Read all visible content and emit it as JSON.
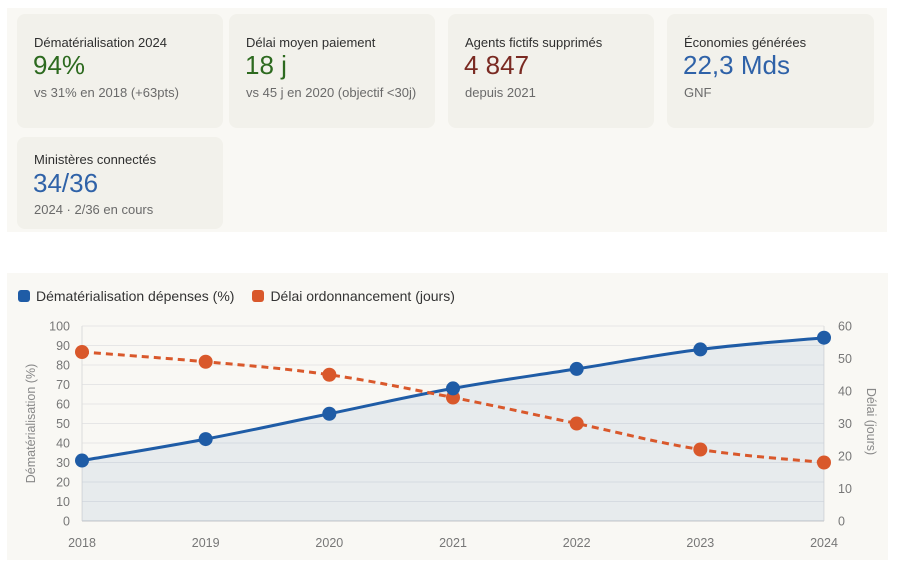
{
  "kpis": [
    {
      "label": "Dématérialisation 2024",
      "value": "94%",
      "sub": "vs 31% en 2018 (+63pts)",
      "tone": "green"
    },
    {
      "label": "Délai moyen paiement",
      "value": "18 j",
      "sub": "vs 45 j en 2020 (objectif <30j)",
      "tone": "green"
    },
    {
      "label": "Agents fictifs supprimés",
      "value": "4 847",
      "sub": "depuis 2021",
      "tone": "red"
    },
    {
      "label": "Économies générées",
      "value": "22,3 Mds",
      "sub": "GNF",
      "tone": "blue"
    },
    {
      "label": "Ministères connectés",
      "value": "34/36",
      "sub": "2024 · 2/36 en cours",
      "tone": "blue"
    }
  ],
  "colors": {
    "green": "#2d6a1f",
    "red": "#7a2a22",
    "blue": "#2f62a8",
    "series_blue": "#1f5ca6",
    "series_orange": "#d9582b"
  },
  "chart_data": {
    "type": "line",
    "title": "",
    "x": [
      "2018",
      "2019",
      "2020",
      "2021",
      "2022",
      "2023",
      "2024"
    ],
    "series": [
      {
        "name": "Dématérialisation dépenses (%)",
        "axis": "left",
        "style": "solid-area",
        "color": "#1f5ca6",
        "values": [
          31,
          42,
          55,
          68,
          78,
          88,
          94
        ]
      },
      {
        "name": "Délai ordonnancement (jours)",
        "axis": "right",
        "style": "dashed",
        "color": "#d9582b",
        "values": [
          52,
          49,
          45,
          38,
          30,
          22,
          18
        ]
      }
    ],
    "ylabel": "Dématérialisation (%)",
    "y2label": "Délai (jours)",
    "xlabel": "",
    "ylim": [
      0,
      100
    ],
    "y2lim": [
      0,
      60
    ],
    "yticks": [
      0,
      10,
      20,
      30,
      40,
      50,
      60,
      70,
      80,
      90,
      100
    ],
    "y2ticks": [
      0,
      10,
      20,
      30,
      40,
      50,
      60
    ],
    "grid": true,
    "legend_position": "top-left"
  }
}
